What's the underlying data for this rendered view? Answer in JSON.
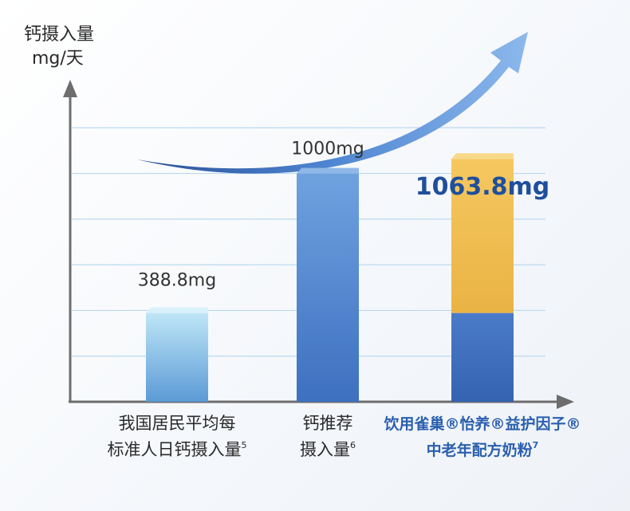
{
  "chart_data": {
    "type": "bar",
    "ylabel": [
      "钙摄入量",
      "mg/天"
    ],
    "ylim": [
      0,
      1400
    ],
    "gridlines": [
      200,
      400,
      600,
      800,
      1000,
      1200
    ],
    "grid": true,
    "categories": [
      {
        "lines": [
          "我国居民平均每",
          "标准人日钙摄入量"
        ],
        "sup": "5",
        "style": "normal"
      },
      {
        "lines": [
          "钙推荐",
          "摄入量"
        ],
        "sup": "6",
        "style": "normal"
      },
      {
        "lines": [
          "饮用雀巢®怡养®益护因子®",
          "中老年配方奶粉"
        ],
        "sup": "7",
        "style": "brand"
      }
    ],
    "values": [
      388.8,
      1000,
      1063.8
    ],
    "value_labels": [
      "388.8mg",
      "1000mg",
      "1063.8mg"
    ],
    "stack_split_third_bar": 388.8,
    "colors": {
      "bar1_top": "#bfe6f6",
      "bar1_bottom": "#5b9ad6",
      "bar2_top": "#6b9fdc",
      "bar2_bottom": "#3f74c4",
      "bar3_lower": "#3f6fbf",
      "bar3_upper": "#f2c052",
      "grid": "#bcd9ee",
      "axis": "#6d6d6d",
      "arrow": "#3a6fc4"
    }
  }
}
